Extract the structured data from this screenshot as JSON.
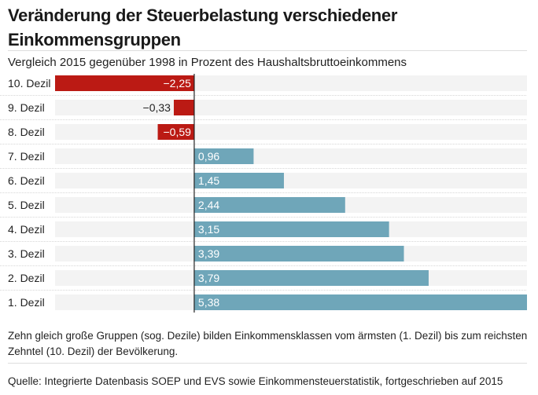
{
  "chart_data": {
    "type": "bar",
    "orientation": "horizontal",
    "title": "Veränderung der Steuerbelastung verschiedener Einkommensgruppen",
    "subtitle": "Vergleich 2015 gegenüber 1998 in Prozent des Haushaltsbruttoeinkommens",
    "categories": [
      "10. Dezil",
      "9. Dezil",
      "8. Dezil",
      "7. Dezil",
      "6. Dezil",
      "5. Dezil",
      "4. Dezil",
      "3. Dezil",
      "2. Dezil",
      "1. Dezil"
    ],
    "values": [
      -2.25,
      -0.33,
      -0.59,
      0.96,
      1.45,
      2.44,
      3.15,
      3.39,
      3.79,
      5.38
    ],
    "value_labels": [
      "−2,25",
      "−0,33",
      "−0,59",
      "0,96",
      "1,45",
      "2,44",
      "3,15",
      "3,39",
      "3,79",
      "5,38"
    ],
    "xlim": [
      -2.25,
      5.38
    ],
    "xlabel": "",
    "ylabel": "",
    "grid": false,
    "colors": {
      "negative": "#bb1a14",
      "positive": "#6fa6b9",
      "row_background": "#f3f3f3",
      "zero_line": "#222222"
    }
  },
  "note": "Zehn gleich große Gruppen (sog. Dezile) bilden Einkommensklassen vom ärmsten (1. Dezil) bis zum reichsten Zehntel (10. Dezil) der Bevölkerung.",
  "source": "Quelle: Integrierte Datenbasis SOEP und EVS sowie Einkommensteuerstatistik, fortgeschrieben auf 2015"
}
